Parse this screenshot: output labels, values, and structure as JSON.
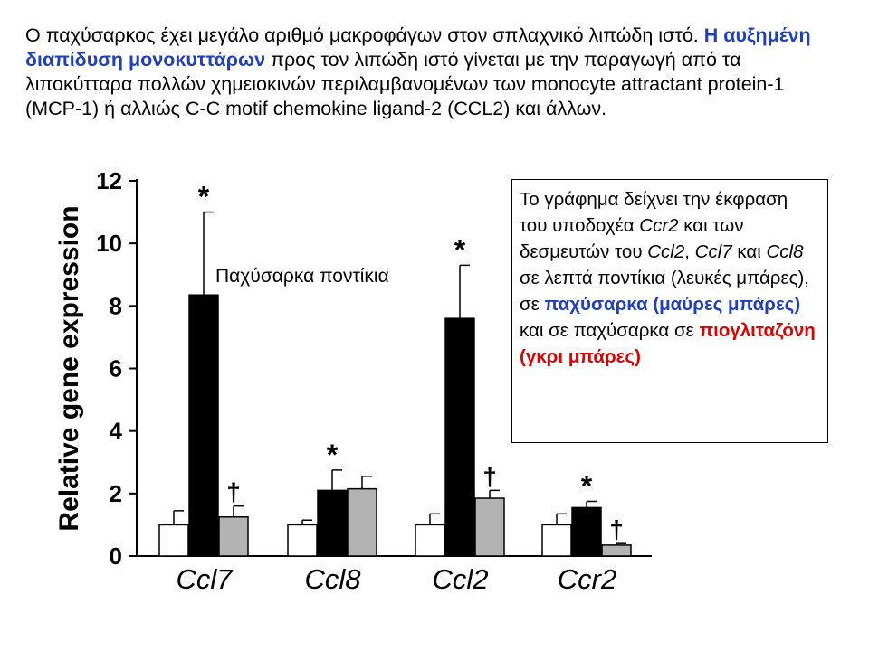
{
  "intro": {
    "part1": "Ο παχύσαρκος έχει μεγάλο αριθμό μακροφάγων στον σπλαχνικό λιπώδη ιστό. ",
    "highlight": "Η αυξημένη διαπίδυση μονοκυττάρων",
    "part2": " προς τον λιπώδη ιστό γίνεται με την παραγωγή από τα λιποκύτταρα πολλών χημειοκινών περιλαμβανομένων των monocyte attractant protein-1 (MCP-1) ή αλλιώς C-C motif chemokine ligand-2 (CCL2) και άλλων."
  },
  "info_box": {
    "t1": "Το γράφημα δείχνει την έκφραση του υποδοχέα ",
    "ccr2": "Ccr2",
    "t2": " και των δεσμευτών του ",
    "ccl2": "Ccl2",
    "t3": ", ",
    "ccl7": "Ccl7",
    "t4": " και ",
    "ccl8": "Ccl8",
    "t5": " σε λεπτά ποντίκια (λευκές μπάρες), σε ",
    "obese": "παχύσαρκα (μαύρες μπάρες)",
    "t6": " και σε παχύσαρκα σε ",
    "pio": "πιογλιταζόνη (γκρι μπάρες)"
  },
  "colors": {
    "blue_highlight": "#1f3fbf",
    "red_highlight": "#e00000",
    "lean_bar": "#ffffff",
    "obese_bar": "#000000",
    "pio_bar": "#b3b3b3"
  },
  "chart_data": {
    "type": "bar",
    "ylabel": "Relative gene expression",
    "ylim": [
      0,
      12
    ],
    "yticks": [
      0,
      2,
      4,
      6,
      8,
      10,
      12
    ],
    "categories": [
      "Ccl7",
      "Ccl8",
      "Ccl2",
      "Ccr2"
    ],
    "annotation": "Παχύσαρκα ποντίκια",
    "series": [
      {
        "values": [
          1.0,
          1.0,
          1.0,
          1.0
        ],
        "errors": [
          0.45,
          0.15,
          0.35,
          0.35
        ],
        "marks": [
          "",
          "",
          "",
          ""
        ]
      },
      {
        "values": [
          8.35,
          2.1,
          7.6,
          1.55
        ],
        "errors": [
          2.65,
          0.65,
          1.7,
          0.2
        ],
        "marks": [
          "*",
          "*",
          "*",
          "*"
        ]
      },
      {
        "values": [
          1.25,
          2.15,
          1.85,
          0.35
        ],
        "errors": [
          0.35,
          0.4,
          0.25,
          0.05
        ],
        "marks": [
          "†",
          "",
          "†",
          "†"
        ]
      }
    ]
  }
}
